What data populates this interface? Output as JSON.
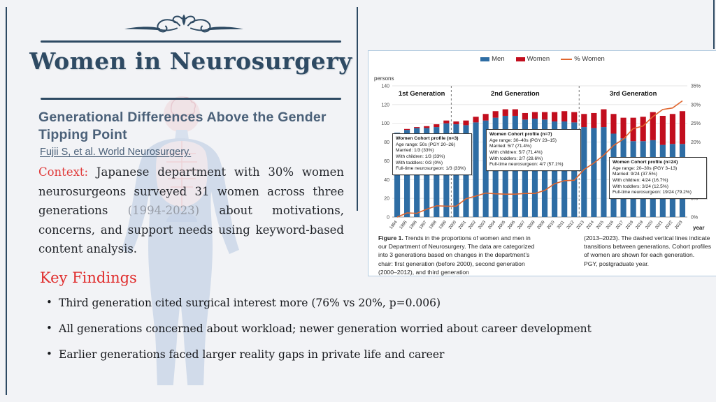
{
  "header": {
    "title": "Women in Neurosurgery",
    "subtitle": "Generational Differences Above the Gender Tipping Point",
    "citation": "Fujii S, et al. World Neurosurgery."
  },
  "context": {
    "label": "Context:",
    "text_before": "Japanese department with 30% women neurosurgeons surveyed 31 women across three generations ",
    "years": "(1994-2023)",
    "text_after": " about motivations, concerns, and support needs using keyword-based content analysis."
  },
  "key_findings_heading": "Key Findings",
  "bullets": [
    "Third generation cited surgical interest more (76% vs 20%, p=0.006)",
    "All generations concerned about workload; newer generation worried about career development",
    "Earlier generations faced larger reality gaps in private life and career"
  ],
  "chart_data": {
    "type": "bar",
    "stacked": true,
    "unit_label": "persons",
    "xlabel": "year",
    "categories": [
      1994,
      1995,
      1996,
      1997,
      1998,
      1999,
      2000,
      2001,
      2002,
      2003,
      2004,
      2005,
      2006,
      2007,
      2008,
      2009,
      2010,
      2011,
      2012,
      2013,
      2014,
      2015,
      2016,
      2017,
      2018,
      2019,
      2020,
      2021,
      2022,
      2023
    ],
    "series": [
      {
        "name": "Men",
        "type": "bar",
        "color": "#2e6da4",
        "values": [
          90,
          93,
          95,
          95,
          96,
          100,
          99,
          98,
          101,
          103,
          106,
          108,
          108,
          104,
          105,
          104,
          102,
          102,
          101,
          96,
          95,
          96,
          89,
          84,
          81,
          81,
          82,
          77,
          78,
          78
        ]
      },
      {
        "name": "Women",
        "type": "bar",
        "color": "#c20e1e",
        "values": [
          0,
          1,
          1,
          2,
          3,
          3,
          3,
          5,
          6,
          7,
          7,
          7,
          7,
          7,
          7,
          8,
          10,
          11,
          11,
          14,
          16,
          19,
          21,
          22,
          25,
          26,
          30,
          31,
          32,
          35
        ]
      },
      {
        "name": "% Women",
        "type": "line",
        "color": "#e0662e",
        "axis": "right",
        "values": [
          0,
          1.1,
          1.0,
          2.1,
          3.0,
          2.9,
          2.9,
          4.9,
          5.6,
          6.4,
          6.2,
          6.1,
          6.1,
          6.3,
          6.3,
          7.1,
          8.9,
          9.7,
          9.8,
          12.7,
          14.4,
          16.5,
          19.1,
          20.8,
          23.6,
          24.3,
          26.8,
          28.7,
          29.1,
          31.0
        ]
      }
    ],
    "ylim_left": [
      0,
      140
    ],
    "yticks_left": [
      0,
      20,
      40,
      60,
      80,
      100,
      120,
      140
    ],
    "ylim_right": [
      0,
      35
    ],
    "yticks_right": [
      0,
      5,
      10,
      15,
      20,
      25,
      30,
      35
    ],
    "yticks_right_labels": [
      "0%",
      "5%",
      "10%",
      "15%",
      "20%",
      "25%",
      "30%",
      "35%"
    ],
    "grid": true,
    "legend_position": "top",
    "generations": [
      {
        "label": "1st Generation",
        "start": 1994,
        "end": 1999
      },
      {
        "label": "2nd Generation",
        "start": 2000,
        "end": 2012
      },
      {
        "label": "3rd Generation",
        "start": 2013,
        "end": 2023
      }
    ],
    "annotations": [
      {
        "title": "Women Cohort profile (n=3)",
        "lines": [
          "Age range: 50s (PGY 20–26)",
          "Married: 1/3 (33%)",
          "With children: 1/3 (33%)",
          "With toddlers: 0/3 (0%)",
          "Full-time neurosurgeon: 1/3 (33%)"
        ]
      },
      {
        "title": "Women Cohort profile (n=7)",
        "lines": [
          "Age range: 30–40s (PGY 23–15)",
          "Married: 5/7 (71.4%)",
          "With children: 5/7 (71.4%)",
          "With toddlers: 2/7 (28.6%)",
          "Full-time neurosurgeon: 4/7 (57.1%)"
        ]
      },
      {
        "title": "Women Cohort profile (n=24)",
        "lines": [
          "Age range: 20–30s (PGY 3–13)",
          "Married: 9/24 (37.5%)",
          "With children: 4/24 (16.7%)",
          "With toddlers: 3/24 (12.5%)",
          "Full-time neurosurgeon: 19/24 (79.2%)"
        ]
      }
    ],
    "caption": {
      "figure_label": "Figure 1.",
      "left": " Trends in the proportions of women and men in our Department of Neurosurgery. The data are categorized into 3 generations based on changes in the department’s chair: first generation (before 2000), second generation (2000–2012), and third generation",
      "right1": "(2013–2023). The dashed vertical lines indicate transitions between generations. Cohort profiles of women are shown for each generation.",
      "right2": "PGY, postgraduate year."
    }
  }
}
